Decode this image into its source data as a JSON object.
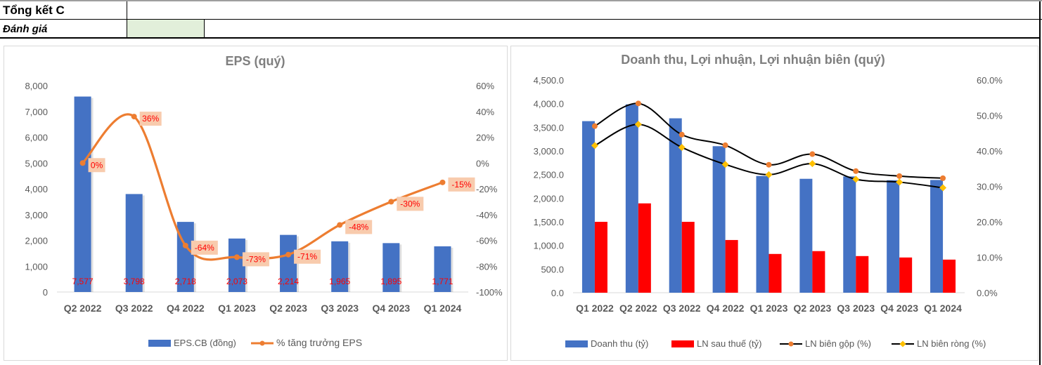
{
  "sheet": {
    "title": "Tổng kết C",
    "eval_label": "Đánh giá",
    "eval_value": ""
  },
  "colors": {
    "bar_blue": "#4472c4",
    "bar_red": "#ff0000",
    "line_orange": "#ed7d31",
    "marker_yellow": "#ffc000",
    "line_black": "#000000",
    "label_bg": "#f8cbad",
    "label_red": "#ff0000",
    "axis_text": "#595959",
    "title_text": "#7f7f7f"
  },
  "chart_data": [
    {
      "type": "bar",
      "title": "EPS  (quý)",
      "categories": [
        "Q2 2022",
        "Q3 2022",
        "Q4 2022",
        "Q1 2023",
        "Q2 2023",
        "Q3 2023",
        "Q4 2023",
        "Q1 2024"
      ],
      "xlabel": "",
      "ylabel": "",
      "ylim": [
        0,
        8000
      ],
      "yticks": [
        "0",
        "1,000",
        "2,000",
        "3,000",
        "4,000",
        "5,000",
        "6,000",
        "7,000",
        "8,000"
      ],
      "y2lim": [
        -100,
        60
      ],
      "y2ticks": [
        "-100%",
        "-80%",
        "-60%",
        "-40%",
        "-20%",
        "0%",
        "20%",
        "40%",
        "60%"
      ],
      "grid": false,
      "legend": "bottom",
      "series": [
        {
          "name": "EPS.CB (đồng)",
          "type": "bar",
          "axis": "left",
          "values": [
            7577,
            3798,
            2718,
            2073,
            2214,
            1965,
            1895,
            1771
          ],
          "labels": [
            "7,577",
            "3,798",
            "2,718",
            "2,073",
            "2,214",
            "1,965",
            "1,895",
            "1,771"
          ]
        },
        {
          "name": "% tăng trưởng EPS",
          "type": "line",
          "axis": "right",
          "smooth": true,
          "values": [
            0,
            36,
            -64,
            -73,
            -71,
            -48,
            -30,
            -15
          ],
          "labels": [
            "0%",
            "36%",
            "-64%",
            "-73%",
            "-71%",
            "-48%",
            "-30%",
            "-15%"
          ]
        }
      ]
    },
    {
      "type": "bar",
      "title": "Doanh thu, Lợi nhuận, Lợi nhuận biên (quý)",
      "categories": [
        "Q1 2022",
        "Q2 2022",
        "Q3 2022",
        "Q4 2022",
        "Q1 2023",
        "Q2 2023",
        "Q3 2023",
        "Q4 2023",
        "Q1 2024"
      ],
      "xlabel": "",
      "ylabel": "",
      "ylim": [
        0,
        4500
      ],
      "yticks": [
        "0.0",
        "500.0",
        "1,000.0",
        "1,500.0",
        "2,000.0",
        "2,500.0",
        "3,000.0",
        "3,500.0",
        "4,000.0",
        "4,500.0"
      ],
      "y2lim": [
        0,
        60
      ],
      "y2ticks": [
        "0.0%",
        "10.0%",
        "20.0%",
        "30.0%",
        "40.0%",
        "50.0%",
        "60.0%"
      ],
      "grid": false,
      "legend": "bottom",
      "series": [
        {
          "name": "Doanh thu (tỷ)",
          "type": "bar",
          "axis": "left",
          "values": [
            3630,
            3985,
            3690,
            3100,
            2470,
            2410,
            2460,
            2380,
            2385
          ]
        },
        {
          "name": "LN sau thuế (tỷ)",
          "type": "bar",
          "axis": "left",
          "values": [
            1500,
            1890,
            1500,
            1115,
            820,
            880,
            775,
            745,
            700
          ]
        },
        {
          "name": "LN biên gộp (%)",
          "type": "line",
          "axis": "right",
          "smooth": true,
          "marker": "circle",
          "values": [
            47.0,
            53.4,
            44.6,
            41.6,
            36.1,
            39.1,
            34.3,
            32.9,
            32.3
          ]
        },
        {
          "name": "LN biên ròng (%)",
          "type": "line",
          "axis": "right",
          "smooth": true,
          "marker": "diamond",
          "values": [
            41.5,
            47.5,
            41.0,
            36.2,
            33.3,
            36.4,
            32.0,
            31.2,
            29.6
          ]
        }
      ]
    }
  ]
}
